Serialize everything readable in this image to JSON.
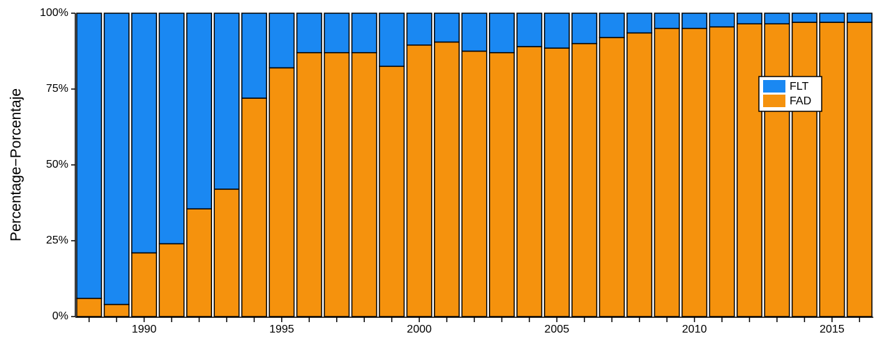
{
  "chart_data": {
    "type": "stacked-bar",
    "y_label": "Percentage−Porcentaje",
    "categories": [
      null,
      null,
      "1990",
      null,
      null,
      null,
      null,
      "1995",
      null,
      null,
      null,
      null,
      "2000",
      null,
      null,
      null,
      null,
      "2005",
      null,
      null,
      null,
      null,
      "2010",
      null,
      null,
      null,
      null,
      "2015",
      null
    ],
    "series": [
      {
        "name": "FLT",
        "color": "#1a88f2",
        "values": [
          94,
          96,
          79,
          76,
          64.5,
          58,
          28,
          18,
          13,
          13,
          13,
          17.5,
          10.5,
          9.5,
          12.5,
          13,
          11,
          11.5,
          10,
          8,
          6.5,
          5,
          5,
          4.5,
          3.5,
          3.5,
          3,
          3,
          3
        ]
      },
      {
        "name": "FAD",
        "color": "#f5920d",
        "values": [
          6,
          4,
          21,
          24,
          35.5,
          42,
          72,
          82,
          87,
          87,
          87,
          82.5,
          89.5,
          90.5,
          87.5,
          87,
          89,
          88.5,
          90,
          92,
          93.5,
          95,
          95,
          95.5,
          96.5,
          96.5,
          97,
          97,
          97
        ]
      }
    ],
    "ylim": [
      0,
      100
    ],
    "yticks": [
      {
        "value": 0,
        "label": "0%"
      },
      {
        "value": 25,
        "label": "25%"
      },
      {
        "value": 50,
        "label": "50%"
      },
      {
        "value": 75,
        "label": "75%"
      },
      {
        "value": 100,
        "label": "100%"
      }
    ],
    "legend": "right"
  }
}
